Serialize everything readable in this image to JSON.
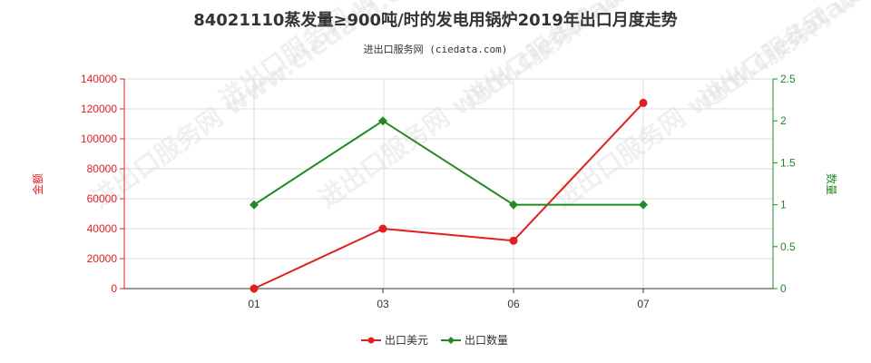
{
  "chart_data": {
    "type": "line",
    "title": "84021110蒸发量≥900吨/时的发电用锅炉2019年出口月度走势",
    "subtitle": "进出口服务网 (ciedata.com)",
    "categories": [
      "01",
      "03",
      "06",
      "07"
    ],
    "xlabel": "",
    "y_left": {
      "label": "金额",
      "ylim": [
        0,
        140000
      ],
      "ticks": [
        0,
        20000,
        40000,
        60000,
        80000,
        100000,
        120000,
        140000
      ],
      "color": "#e02020"
    },
    "y_right": {
      "label": "数量",
      "ylim": [
        0,
        2.5
      ],
      "ticks": [
        0,
        0.5,
        1,
        1.5,
        2,
        2.5
      ],
      "color": "#238a23"
    },
    "series": [
      {
        "name": "出口美元",
        "axis": "left",
        "color": "#e02020",
        "marker": "circle",
        "values": [
          0,
          40000,
          32000,
          124000
        ]
      },
      {
        "name": "出口数量",
        "axis": "right",
        "color": "#238a23",
        "marker": "diamond",
        "values": [
          1,
          2,
          1,
          1
        ]
      }
    ],
    "grid": true,
    "legend_position": "bottom-center",
    "watermark": "进出口服务网 www.ciedata.com"
  }
}
